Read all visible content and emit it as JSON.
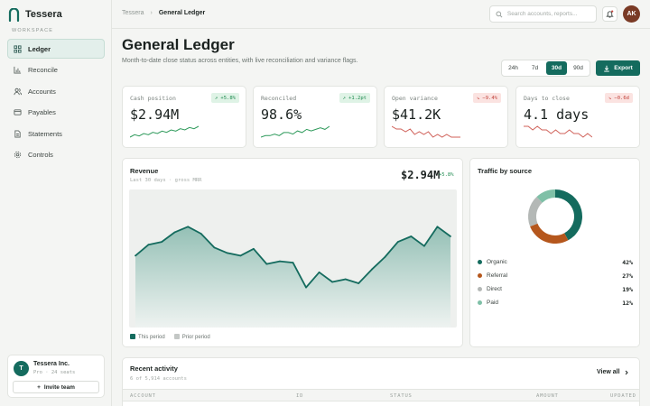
{
  "app": {
    "name": "Tessera"
  },
  "sidebar": {
    "section_label": "WORKSPACE",
    "items": [
      {
        "label": "Ledger",
        "icon": "grid-icon",
        "active": true
      },
      {
        "label": "Reconcile",
        "icon": "bar-chart-icon",
        "active": false
      },
      {
        "label": "Accounts",
        "icon": "users-icon",
        "active": false
      },
      {
        "label": "Payables",
        "icon": "card-icon",
        "active": false
      },
      {
        "label": "Statements",
        "icon": "document-icon",
        "active": false
      },
      {
        "label": "Controls",
        "icon": "gear-icon",
        "active": false
      }
    ],
    "org": {
      "initial": "T",
      "name": "Tessera Inc.",
      "meta": "Pro · 24 seats",
      "invite_label": "Invite team"
    }
  },
  "topbar": {
    "breadcrumb_root": "Tessera",
    "breadcrumb_sep": "›",
    "breadcrumb_current": "General Ledger",
    "search_placeholder": "Search accounts, reports...",
    "user_initials": "AK"
  },
  "header": {
    "title": "General Ledger",
    "subtitle": "Month-to-date close status across entities, with live reconciliation and variance flags.",
    "ranges": [
      {
        "label": "24h",
        "active": false
      },
      {
        "label": "7d",
        "active": false
      },
      {
        "label": "30d",
        "active": true
      },
      {
        "label": "90d",
        "active": false
      }
    ],
    "export_label": "Export"
  },
  "kpis": [
    {
      "label": "Cash position",
      "delta": "↗ +5.8%",
      "trend": "up",
      "value": "$2.94M",
      "spark": [
        5,
        7,
        6,
        8,
        7,
        9,
        8,
        10,
        9,
        11,
        10,
        12,
        11,
        13,
        12,
        14
      ]
    },
    {
      "label": "Reconciled",
      "delta": "↗ +1.2pt",
      "trend": "up",
      "value": "98.6%",
      "spark": [
        6,
        7,
        7,
        8,
        7,
        9,
        9,
        8,
        10,
        9,
        11,
        10,
        11,
        12,
        11,
        13
      ]
    },
    {
      "label": "Open variance",
      "delta": "↘ −9.4%",
      "trend": "down",
      "value": "$41.2K",
      "spark": [
        12,
        11,
        11,
        10,
        11,
        9,
        10,
        9,
        10,
        8,
        9,
        8,
        9,
        8,
        8,
        8
      ]
    },
    {
      "label": "Days to close",
      "delta": "↘ −0.6d",
      "trend": "down",
      "value": "4.1 days",
      "spark": [
        12,
        12,
        11,
        12,
        11,
        11,
        10,
        11,
        10,
        10,
        11,
        10,
        10,
        9,
        10,
        9
      ]
    }
  ],
  "revenue": {
    "title": "Revenue",
    "subtitle": "Last 30 days · gross MRR",
    "value": "$2.94M",
    "delta": "+5.8%",
    "legend_current": "This period",
    "legend_prior": "Prior period"
  },
  "chart_data": {
    "type": "area",
    "title": "Revenue",
    "xlabel": "",
    "ylabel": "",
    "grid": false,
    "x": [
      1,
      2,
      3,
      4,
      5,
      6,
      7,
      8,
      9,
      10,
      11,
      12,
      13,
      14,
      15,
      16,
      17,
      18,
      19,
      20,
      21,
      22,
      23,
      24,
      25
    ],
    "series": [
      {
        "name": "This period",
        "values": [
          52,
          60,
          62,
          69,
          73,
          68,
          58,
          54,
          52,
          57,
          46,
          48,
          47,
          29,
          40,
          33,
          35,
          32,
          42,
          51,
          62,
          66,
          59,
          73,
          66
        ]
      }
    ],
    "ylim": [
      0,
      100
    ],
    "colors": {
      "line": "#146b5e",
      "fill_top": "#8fbdb2",
      "fill_bottom": "#eef3f1",
      "bg": "#eef0ee"
    }
  },
  "traffic": {
    "title": "Traffic by source",
    "sources": [
      {
        "label": "Organic",
        "pct": "42%",
        "value": 42,
        "color": "#146b5e"
      },
      {
        "label": "Referral",
        "pct": "27%",
        "value": 27,
        "color": "#b5571d"
      },
      {
        "label": "Direct",
        "pct": "19%",
        "value": 19,
        "color": "#b4b8b6"
      },
      {
        "label": "Paid",
        "pct": "12%",
        "value": 12,
        "color": "#7fc0a7"
      }
    ]
  },
  "activity": {
    "title": "Recent activity",
    "subtitle": "6 of 5,914 accounts",
    "view_all": "View all",
    "columns": [
      "ACCOUNT",
      "ID",
      "STATUS",
      "AMOUNT",
      "UPDATED"
    ]
  }
}
